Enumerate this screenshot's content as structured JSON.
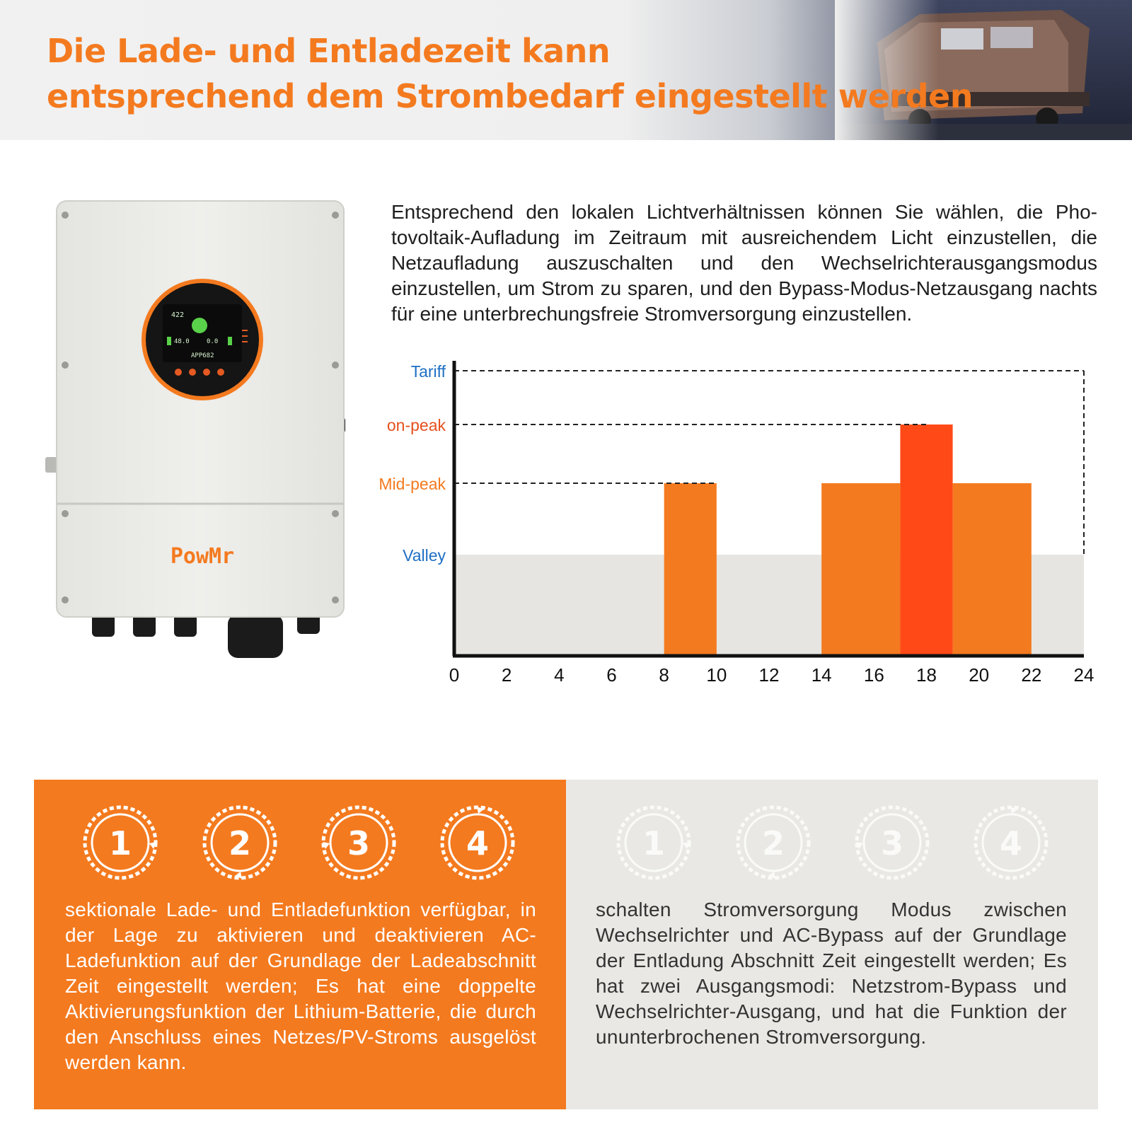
{
  "header": {
    "title_line1": "Die Lade- und Entladezeit kann",
    "title_line2": "entsprechend dem Strombedarf eingestellt werden"
  },
  "product": {
    "brand": "PowMr",
    "display": {
      "top_value": "422",
      "left_value": "48.0",
      "right_value": "0.0",
      "unit_text": "APP682"
    }
  },
  "description": "Entsprechend den lokalen Lichtverhältnissen können Sie wählen, die Pho­tovoltaik-Aufladung im Zeitraum mit ausreichendem Licht einzustellen, die Netzaufladung auszuschalten und den Wechselrichterausgangsmo­dus einzustellen, um Strom zu sparen, und den Bypass-Modus-Netzaus­gang nachts für eine unterbrechungsfreie Stromversorgung einzustellen.",
  "chart_data": {
    "type": "bar",
    "title": "",
    "xlabel": "",
    "ylabel": "Tariff",
    "x_ticks": [
      0,
      2,
      4,
      6,
      8,
      10,
      12,
      14,
      16,
      18,
      20,
      22,
      24
    ],
    "xlim": [
      0,
      24
    ],
    "levels": [
      {
        "name": "Valley",
        "value": 1,
        "color": "#1f6fc4"
      },
      {
        "name": "Mid-peak",
        "value": 2,
        "color": "#f47a1f"
      },
      {
        "name": "on-peak",
        "value": 3,
        "color": "#e5501c"
      },
      {
        "name": "Tariff",
        "value": 4,
        "color": "#1f6fc4"
      }
    ],
    "baseline": {
      "level": "Valley",
      "from": 0,
      "to": 24,
      "color": "#e6e5e1"
    },
    "bars": [
      {
        "from": 8,
        "to": 10,
        "level": "Mid-peak",
        "color": "#f47a1f"
      },
      {
        "from": 14,
        "to": 17,
        "level": "Mid-peak",
        "color": "#f47a1f"
      },
      {
        "from": 17,
        "to": 19,
        "level": "on-peak",
        "color": "#ff4a17"
      },
      {
        "from": 19,
        "to": 22,
        "level": "Mid-peak",
        "color": "#f47a1f"
      }
    ],
    "dashed_guides": [
      {
        "level": "Tariff",
        "to": 24
      },
      {
        "level": "on-peak",
        "to": 18
      },
      {
        "level": "Mid-peak",
        "to": 10
      }
    ]
  },
  "panels": {
    "left": {
      "clock_numbers": [
        "1",
        "2",
        "3",
        "4"
      ],
      "text": "sektionale Lade- und Entladefunktion verfügbar, in der Lage zu aktivieren und deaktivieren AC-Ladefunktion auf der Grundlage der Ladeab­schnitt Zeit eingestellt werden; Es hat eine dop­pelte Aktivierungsfunktion der Lithium-Batterie, die durch den Anschluss eines Netzes/PV-Stroms ausgelöst werden kann."
    },
    "right": {
      "clock_numbers": [
        "1",
        "2",
        "3",
        "4"
      ],
      "text": "schalten Stromversorgung Modus zwischen Wechselrichter und AC-Bypass auf der Grundlage der Entladung Abschnitt Zeit eingestellt werden; Es hat zwei Ausgangsmodi: Netzstrom-Bypass und Wechselrichter-Ausgang, und hat die Funktion der ununterbrochenen Stromversorgung."
    }
  },
  "colors": {
    "accent": "#f47a1f",
    "on_peak": "#ff4a17",
    "valley_fill": "#e6e5e1",
    "label_blue": "#1f6fc4"
  }
}
